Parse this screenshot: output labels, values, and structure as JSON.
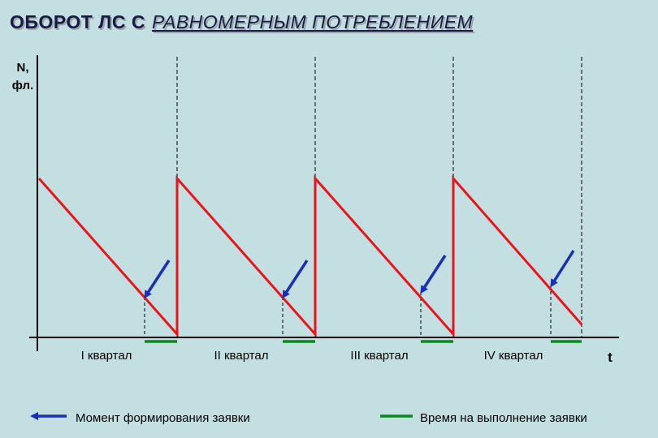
{
  "title": {
    "part1": "ОБОРОТ ЛС С",
    "part2": "РАВНОМЕРНЫМ ПОТРЕБЛЕНИЕМ"
  },
  "axes": {
    "y_label_line1": "N,",
    "y_label_line2": "фл.",
    "x_label": "t"
  },
  "quarters": [
    "I квартал",
    "II квартал",
    "III квартал",
    "IV квартал"
  ],
  "legend": {
    "order_moment": "Момент формирования заявки",
    "execution_time": "Время на выполнение заявки"
  },
  "colors": {
    "stock_line": "#e8151b",
    "order_arrow": "#1a2fb8",
    "execution_bar": "#0a8a1e",
    "axis": "#000000",
    "background": "#c3dfe2"
  }
}
